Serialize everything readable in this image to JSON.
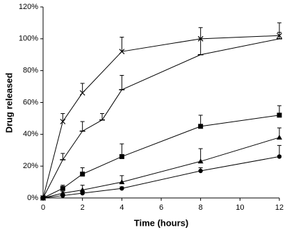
{
  "chart_data": {
    "type": "line",
    "x_label": "Time (hours)",
    "y_label": "Drug released",
    "xlim": [
      0,
      12
    ],
    "xticks": [
      0,
      2,
      4,
      6,
      8,
      10,
      12
    ],
    "ylim": [
      0,
      120
    ],
    "yticks": [
      {
        "value": 0,
        "label": "0%"
      },
      {
        "value": 20,
        "label": "20%"
      },
      {
        "value": 40,
        "label": "40%"
      },
      {
        "value": 60,
        "label": "60%"
      },
      {
        "value": 80,
        "label": "80%"
      },
      {
        "value": 100,
        "label": "100%"
      },
      {
        "value": 120,
        "label": "120%"
      }
    ],
    "grid": false,
    "series": [
      {
        "marker": "cross",
        "color": "#000000",
        "x": [
          0,
          1,
          2,
          4,
          8,
          12
        ],
        "values": [
          0,
          48,
          66,
          92,
          100,
          102
        ],
        "errors": [
          0,
          5,
          6,
          9,
          7,
          8
        ]
      },
      {
        "marker": "dash",
        "color": "#000000",
        "x": [
          0,
          1,
          2,
          3,
          4,
          8,
          12
        ],
        "values": [
          0,
          24,
          42,
          49,
          68,
          90,
          100
        ],
        "errors": [
          0,
          4,
          6,
          4,
          9,
          10,
          4
        ]
      },
      {
        "marker": "square",
        "color": "#000000",
        "x": [
          0,
          1,
          2,
          4,
          8,
          12
        ],
        "values": [
          0,
          6,
          15,
          26,
          45,
          52
        ],
        "errors": [
          0,
          2,
          4,
          8,
          7,
          6
        ]
      },
      {
        "marker": "triangle",
        "color": "#000000",
        "x": [
          0,
          1,
          2,
          4,
          8,
          12
        ],
        "values": [
          0,
          3,
          5,
          10,
          23,
          38
        ],
        "errors": [
          0,
          1,
          3,
          4,
          8,
          6
        ]
      },
      {
        "marker": "circle",
        "color": "#000000",
        "x": [
          0,
          1,
          2,
          4,
          8,
          12
        ],
        "values": [
          0,
          1.5,
          3,
          6,
          17,
          26
        ],
        "errors": [
          0,
          0.5,
          1,
          1,
          2,
          7
        ]
      }
    ]
  }
}
